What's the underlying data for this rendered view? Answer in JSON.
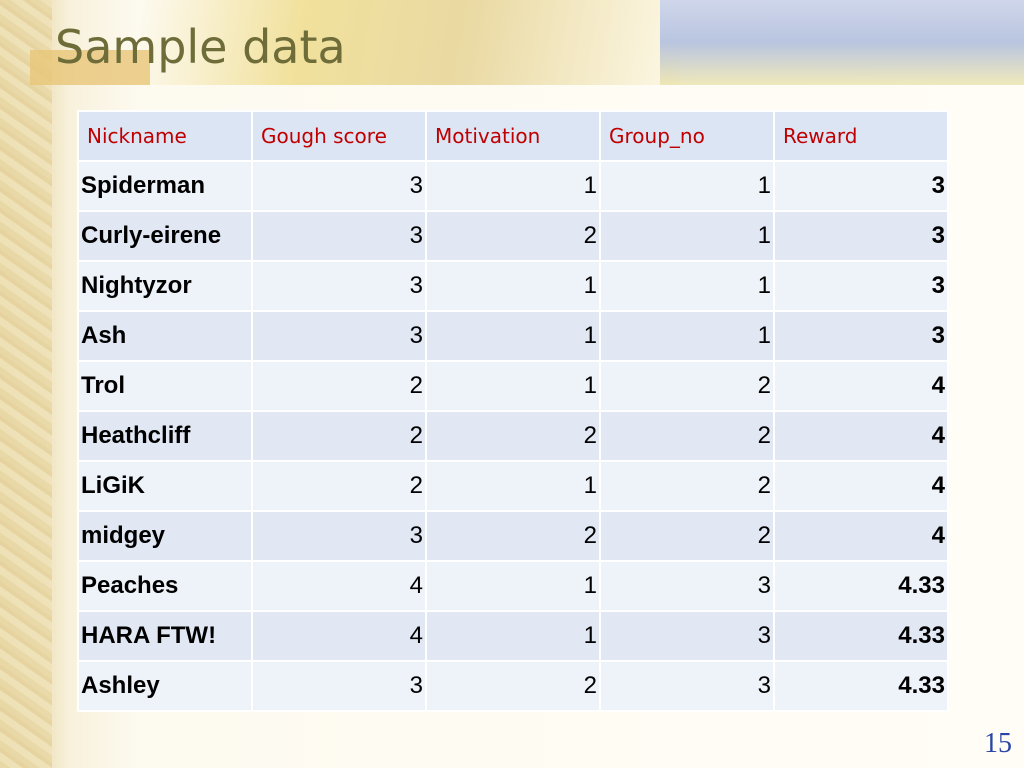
{
  "title": "Sample data",
  "table": {
    "header": [
      "Nickname",
      "Gough score",
      "Motivation",
      "Group_no",
      "Reward"
    ],
    "rows": [
      [
        "Spiderman",
        3,
        1,
        1,
        3
      ],
      [
        "Curly-eirene",
        3,
        2,
        1,
        3
      ],
      [
        "Nightyzor",
        3,
        1,
        1,
        3
      ],
      [
        "Ash",
        3,
        1,
        1,
        3
      ],
      [
        "Trol",
        2,
        1,
        2,
        4
      ],
      [
        "Heathcliff",
        2,
        2,
        2,
        4
      ],
      [
        "LiGiK",
        2,
        1,
        2,
        4
      ],
      [
        "midgey",
        3,
        2,
        2,
        4
      ],
      [
        "Peaches",
        4,
        1,
        3,
        4.33
      ],
      [
        "HARA FTW!",
        4,
        1,
        3,
        4.33
      ],
      [
        "Ashley",
        3,
        2,
        3,
        4.33
      ]
    ]
  },
  "page_number": "15"
}
